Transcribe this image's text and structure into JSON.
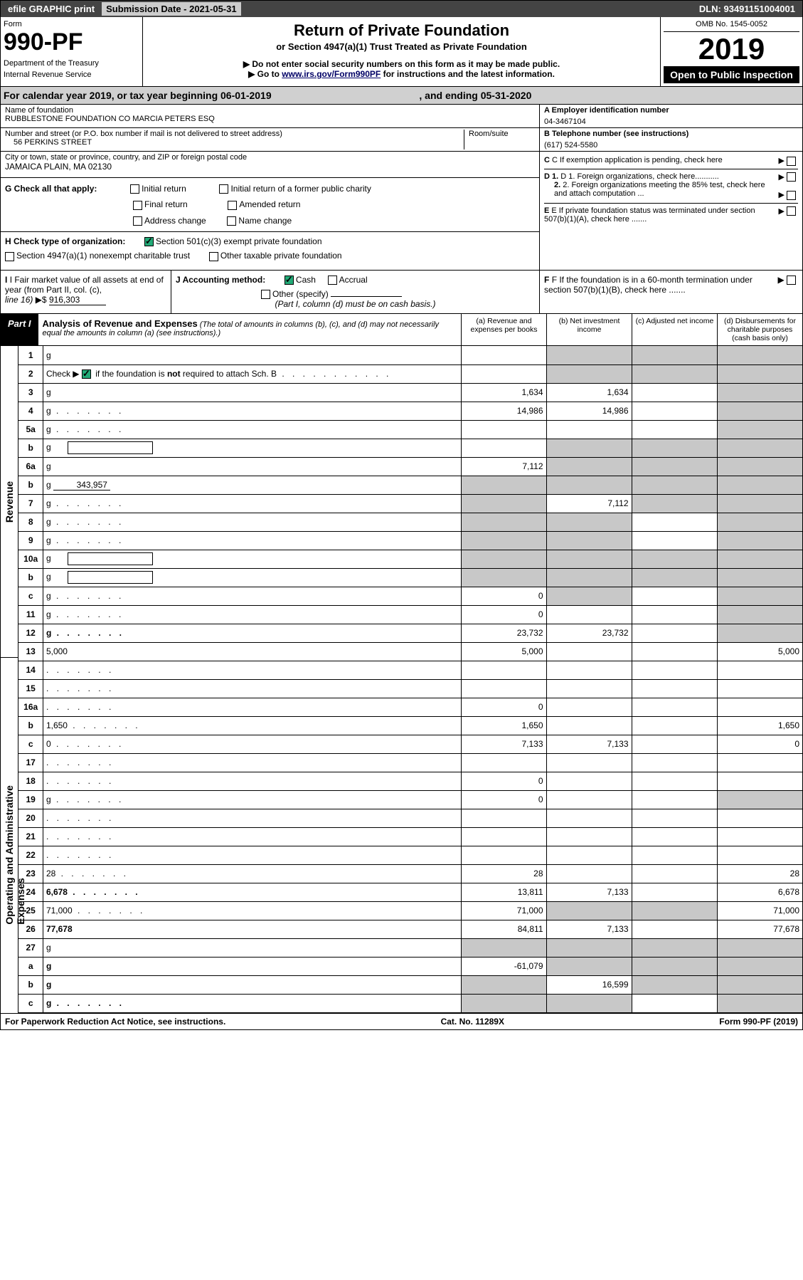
{
  "topbar": {
    "efile": "efile GRAPHIC print",
    "subdate_label": "Submission Date - 2021-05-31",
    "dln": "DLN: 93491151004001"
  },
  "header": {
    "form_label": "Form",
    "form_number": "990-PF",
    "dept1": "Department of the Treasury",
    "dept2": "Internal Revenue Service",
    "title": "Return of Private Foundation",
    "subtitle1": "or Section 4947(a)(1) Trust Treated as Private Foundation",
    "subtitle2": "▶ Do not enter social security numbers on this form as it may be made public.",
    "subtitle3_pre": "▶ Go to ",
    "subtitle3_link": "www.irs.gov/Form990PF",
    "subtitle3_post": " for instructions and the latest information.",
    "omb": "OMB No. 1545-0052",
    "year": "2019",
    "open_public": "Open to Public Inspection"
  },
  "calyear": {
    "text_pre": "For calendar year 2019, or tax year beginning 06-01-2019 ",
    "text_mid": ", and ending 05-31-2020"
  },
  "info": {
    "name_label": "Name of foundation",
    "name": "RUBBLESTONE FOUNDATION CO MARCIA PETERS ESQ",
    "addr_label": "Number and street (or P.O. box number if mail is not delivered to street address)",
    "room_label": "Room/suite",
    "addr": "56 PERKINS STREET",
    "city_label": "City or town, state or province, country, and ZIP or foreign postal code",
    "city": "JAMAICA PLAIN, MA  02130",
    "ein_label": "A Employer identification number",
    "ein": "04-3467104",
    "tel_label": "B Telephone number (see instructions)",
    "tel": "(617) 524-5580",
    "c_label": "C If exemption application is pending, check here",
    "d1_label": "D 1. Foreign organizations, check here...........",
    "d2_label": "2. Foreign organizations meeting the 85% test, check here and attach computation ...",
    "e_label": "E If private foundation status was terminated under section 507(b)(1)(A), check here .......",
    "f_label": "F  If the foundation is in a 60-month termination under section 507(b)(1)(B), check here .......",
    "g_label": "G Check all that apply:",
    "g_opts": [
      "Initial return",
      "Final return",
      "Address change",
      "Initial return of a former public charity",
      "Amended return",
      "Name change"
    ],
    "h_label": "H Check type of organization:",
    "h1": "Section 501(c)(3) exempt private foundation",
    "h2": "Section 4947(a)(1) nonexempt charitable trust",
    "h3": "Other taxable private foundation",
    "i_label": "I Fair market value of all assets at end of year (from Part II, col. (c),",
    "i_line": "line 16)",
    "i_val": "916,303",
    "j_label": "J Accounting method:",
    "j_cash": "Cash",
    "j_accrual": "Accrual",
    "j_other": "Other (specify)",
    "j_note": "(Part I, column (d) must be on cash basis.)"
  },
  "part1": {
    "label": "Part I",
    "title": "Analysis of Revenue and Expenses",
    "note": " (The total of amounts in columns (b), (c), and (d) may not necessarily equal the amounts in column (a) (see instructions).)",
    "col_a": "(a)   Revenue and expenses per books",
    "col_b": "(b)   Net investment income",
    "col_c": "(c)   Adjusted net income",
    "col_d": "(d)  Disbursements for charitable purposes (cash basis only)"
  },
  "side_labels": {
    "revenue": "Revenue",
    "opex": "Operating and Administrative Expenses"
  },
  "rows": [
    {
      "n": "1",
      "d": "g",
      "a": "",
      "b": "g",
      "c": "g"
    },
    {
      "n": "2",
      "d": "g",
      "dots": true,
      "a": "",
      "b": "g",
      "c": "g"
    },
    {
      "n": "3",
      "d": "g",
      "a": "1,634",
      "b": "1,634",
      "c": ""
    },
    {
      "n": "4",
      "d": "g",
      "dots": true,
      "a": "14,986",
      "b": "14,986",
      "c": ""
    },
    {
      "n": "5a",
      "d": "g",
      "dots": true,
      "a": "",
      "b": "",
      "c": ""
    },
    {
      "n": "b",
      "d": "g",
      "inner": true,
      "a": "",
      "b": "g",
      "c": "g"
    },
    {
      "n": "6a",
      "d": "g",
      "a": "7,112",
      "b": "g",
      "c": "g"
    },
    {
      "n": "b",
      "d": "g",
      "inner_val": "343,957",
      "a": "g",
      "b": "g",
      "c": "g"
    },
    {
      "n": "7",
      "d": "g",
      "dots": true,
      "a": "g",
      "b": "7,112",
      "c": "g"
    },
    {
      "n": "8",
      "d": "g",
      "dots": true,
      "a": "g",
      "b": "g",
      "c": ""
    },
    {
      "n": "9",
      "d": "g",
      "dots": true,
      "a": "g",
      "b": "g",
      "c": ""
    },
    {
      "n": "10a",
      "d": "g",
      "inner": true,
      "a": "g",
      "b": "g",
      "c": "g"
    },
    {
      "n": "b",
      "d": "g",
      "dots": true,
      "inner": true,
      "a": "g",
      "b": "g",
      "c": "g"
    },
    {
      "n": "c",
      "d": "g",
      "dots": true,
      "a": "0",
      "b": "g",
      "c": ""
    },
    {
      "n": "11",
      "d": "g",
      "dots": true,
      "a": "0",
      "b": "",
      "c": ""
    },
    {
      "n": "12",
      "d": "g",
      "dots": true,
      "bold": true,
      "a": "23,732",
      "b": "23,732",
      "c": ""
    },
    {
      "n": "13",
      "d": "5,000",
      "a": "5,000",
      "b": "",
      "c": ""
    },
    {
      "n": "14",
      "d": "",
      "dots": true,
      "a": "",
      "b": "",
      "c": ""
    },
    {
      "n": "15",
      "d": "",
      "dots": true,
      "a": "",
      "b": "",
      "c": ""
    },
    {
      "n": "16a",
      "d": "",
      "dots": true,
      "a": "0",
      "b": "",
      "c": ""
    },
    {
      "n": "b",
      "d": "1,650",
      "dots": true,
      "a": "1,650",
      "b": "",
      "c": ""
    },
    {
      "n": "c",
      "d": "0",
      "dots": true,
      "a": "7,133",
      "b": "7,133",
      "c": ""
    },
    {
      "n": "17",
      "d": "",
      "dots": true,
      "a": "",
      "b": "",
      "c": ""
    },
    {
      "n": "18",
      "d": "",
      "dots": true,
      "a": "0",
      "b": "",
      "c": ""
    },
    {
      "n": "19",
      "d": "g",
      "dots": true,
      "a": "0",
      "b": "",
      "c": ""
    },
    {
      "n": "20",
      "d": "",
      "dots": true,
      "a": "",
      "b": "",
      "c": ""
    },
    {
      "n": "21",
      "d": "",
      "dots": true,
      "a": "",
      "b": "",
      "c": ""
    },
    {
      "n": "22",
      "d": "",
      "dots": true,
      "a": "",
      "b": "",
      "c": ""
    },
    {
      "n": "23",
      "d": "28",
      "dots": true,
      "a": "28",
      "b": "",
      "c": ""
    },
    {
      "n": "24",
      "d": "6,678",
      "dots": true,
      "bold": true,
      "a": "13,811",
      "b": "7,133",
      "c": ""
    },
    {
      "n": "25",
      "d": "71,000",
      "dots": true,
      "a": "71,000",
      "b": "g",
      "c": "g"
    },
    {
      "n": "26",
      "d": "77,678",
      "bold": true,
      "a": "84,811",
      "b": "7,133",
      "c": ""
    },
    {
      "n": "27",
      "d": "g",
      "a": "g",
      "b": "g",
      "c": "g"
    },
    {
      "n": "a",
      "d": "g",
      "bold": true,
      "a": "-61,079",
      "b": "g",
      "c": "g"
    },
    {
      "n": "b",
      "d": "g",
      "bold": true,
      "a": "g",
      "b": "16,599",
      "c": "g"
    },
    {
      "n": "c",
      "d": "g",
      "bold": true,
      "dots": true,
      "a": "g",
      "b": "g",
      "c": ""
    }
  ],
  "footer": {
    "left": "For Paperwork Reduction Act Notice, see instructions.",
    "mid": "Cat. No. 11289X",
    "right": "Form 990-PF (2019)"
  },
  "colors": {
    "topbar_bg": "#444444",
    "grey_cell": "#c8c8c8",
    "link": "#000088"
  }
}
